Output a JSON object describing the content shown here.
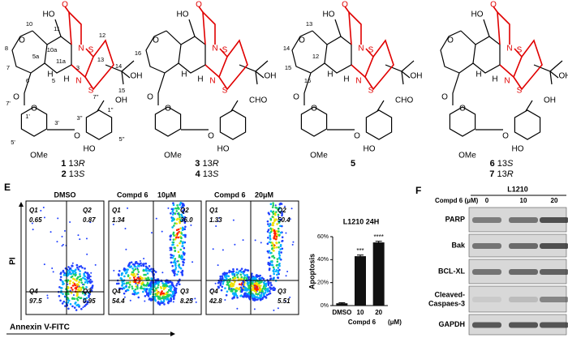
{
  "structures": [
    {
      "id": "1",
      "pos": "13",
      "stereo": "R",
      "id2": "2",
      "pos2": "13",
      "stereo2": "S",
      "aldehyde": "OH",
      "atoms": [
        "O",
        "HO",
        "O",
        "N",
        "S",
        "S",
        "OH",
        "H",
        "H",
        "N",
        "O",
        "O",
        "O",
        "OMe",
        "HO"
      ],
      "numbering": [
        "10",
        "8",
        "7",
        "6",
        "5a",
        "10a",
        "11",
        "11a",
        "5",
        "3",
        "12",
        "13",
        "14",
        "16",
        "15",
        "7''",
        "1''",
        "1'",
        "3'",
        "5'",
        "3''",
        "5''",
        "7'"
      ]
    },
    {
      "id": "3",
      "pos": "13",
      "stereo": "R",
      "id2": "4",
      "pos2": "13",
      "stereo2": "S",
      "aldehyde": "CHO",
      "atoms": [
        "O",
        "HO",
        "O",
        "N",
        "S",
        "S",
        "OH",
        "H",
        "H",
        "N",
        "O",
        "O",
        "O",
        "OMe",
        "HO"
      ]
    },
    {
      "id": "5",
      "aldehyde": "CHO",
      "atoms": [
        "O",
        "HO",
        "O",
        "N",
        "S",
        "S",
        "OH",
        "H",
        "H",
        "N",
        "O",
        "O",
        "O",
        "OMe",
        "HO"
      ],
      "numbering": [
        "13",
        "14",
        "15",
        "16",
        "12"
      ]
    },
    {
      "id": "6",
      "pos": "13",
      "stereo": "S",
      "id2": "7",
      "pos2": "13",
      "stereo2": "R",
      "aldehyde": "OH",
      "atoms": [
        "O",
        "HO",
        "O",
        "N",
        "S",
        "S",
        "OH",
        "H",
        "H",
        "N",
        "O",
        "O",
        "O",
        "OMe",
        "HO"
      ]
    }
  ],
  "panel_e": {
    "letter": "E",
    "y_label": "PI",
    "x_label": "Annexin V-FITC",
    "plots": [
      {
        "title": "DMSO",
        "quadrants": [
          [
            "Q1",
            "0.65"
          ],
          [
            "Q2",
            "0.87"
          ],
          [
            "Q3",
            "0.95"
          ],
          [
            "Q4",
            "97.5"
          ]
        ]
      },
      {
        "title": "Compd 6",
        "dose": "10μM",
        "quadrants": [
          [
            "Q1",
            "1.34"
          ],
          [
            "Q2",
            "36.0"
          ],
          [
            "Q3",
            "8.25"
          ],
          [
            "Q4",
            "54.4"
          ]
        ]
      },
      {
        "title": "Compd 6",
        "dose": "20μM",
        "quadrants": [
          [
            "Q1",
            "1.33"
          ],
          [
            "Q2",
            "50.4"
          ],
          [
            "Q3",
            "5.51"
          ],
          [
            "Q4",
            "42.8"
          ]
        ]
      }
    ]
  },
  "chart_data": {
    "type": "bar",
    "title": "L1210 24H",
    "y_label": "Apoptosis",
    "x_label": "Compd 6",
    "x_unit": "(μM)",
    "categories": [
      "DMSO",
      "10",
      "20"
    ],
    "values": [
      2,
      43,
      55
    ],
    "errors": [
      0.5,
      1,
      1
    ],
    "significance": [
      null,
      "***",
      "****"
    ],
    "color": "#111111",
    "ylim": [
      0,
      60
    ],
    "yticks": [
      {
        "value": 0,
        "label": "0%"
      },
      {
        "value": 20,
        "label": "20%"
      },
      {
        "value": 40,
        "label": "40%"
      },
      {
        "value": 60,
        "label": "60%"
      }
    ]
  },
  "panel_f": {
    "letter": "F",
    "cell_line": "L1210",
    "dose_label": "Compd 6  (μM)",
    "doses": [
      "0",
      "10",
      "20"
    ],
    "proteins": [
      "PARP",
      "Bak",
      "BCL-XL",
      "Cleaved-",
      "GAPDH"
    ],
    "protein_line2": "Caspaes-3"
  }
}
